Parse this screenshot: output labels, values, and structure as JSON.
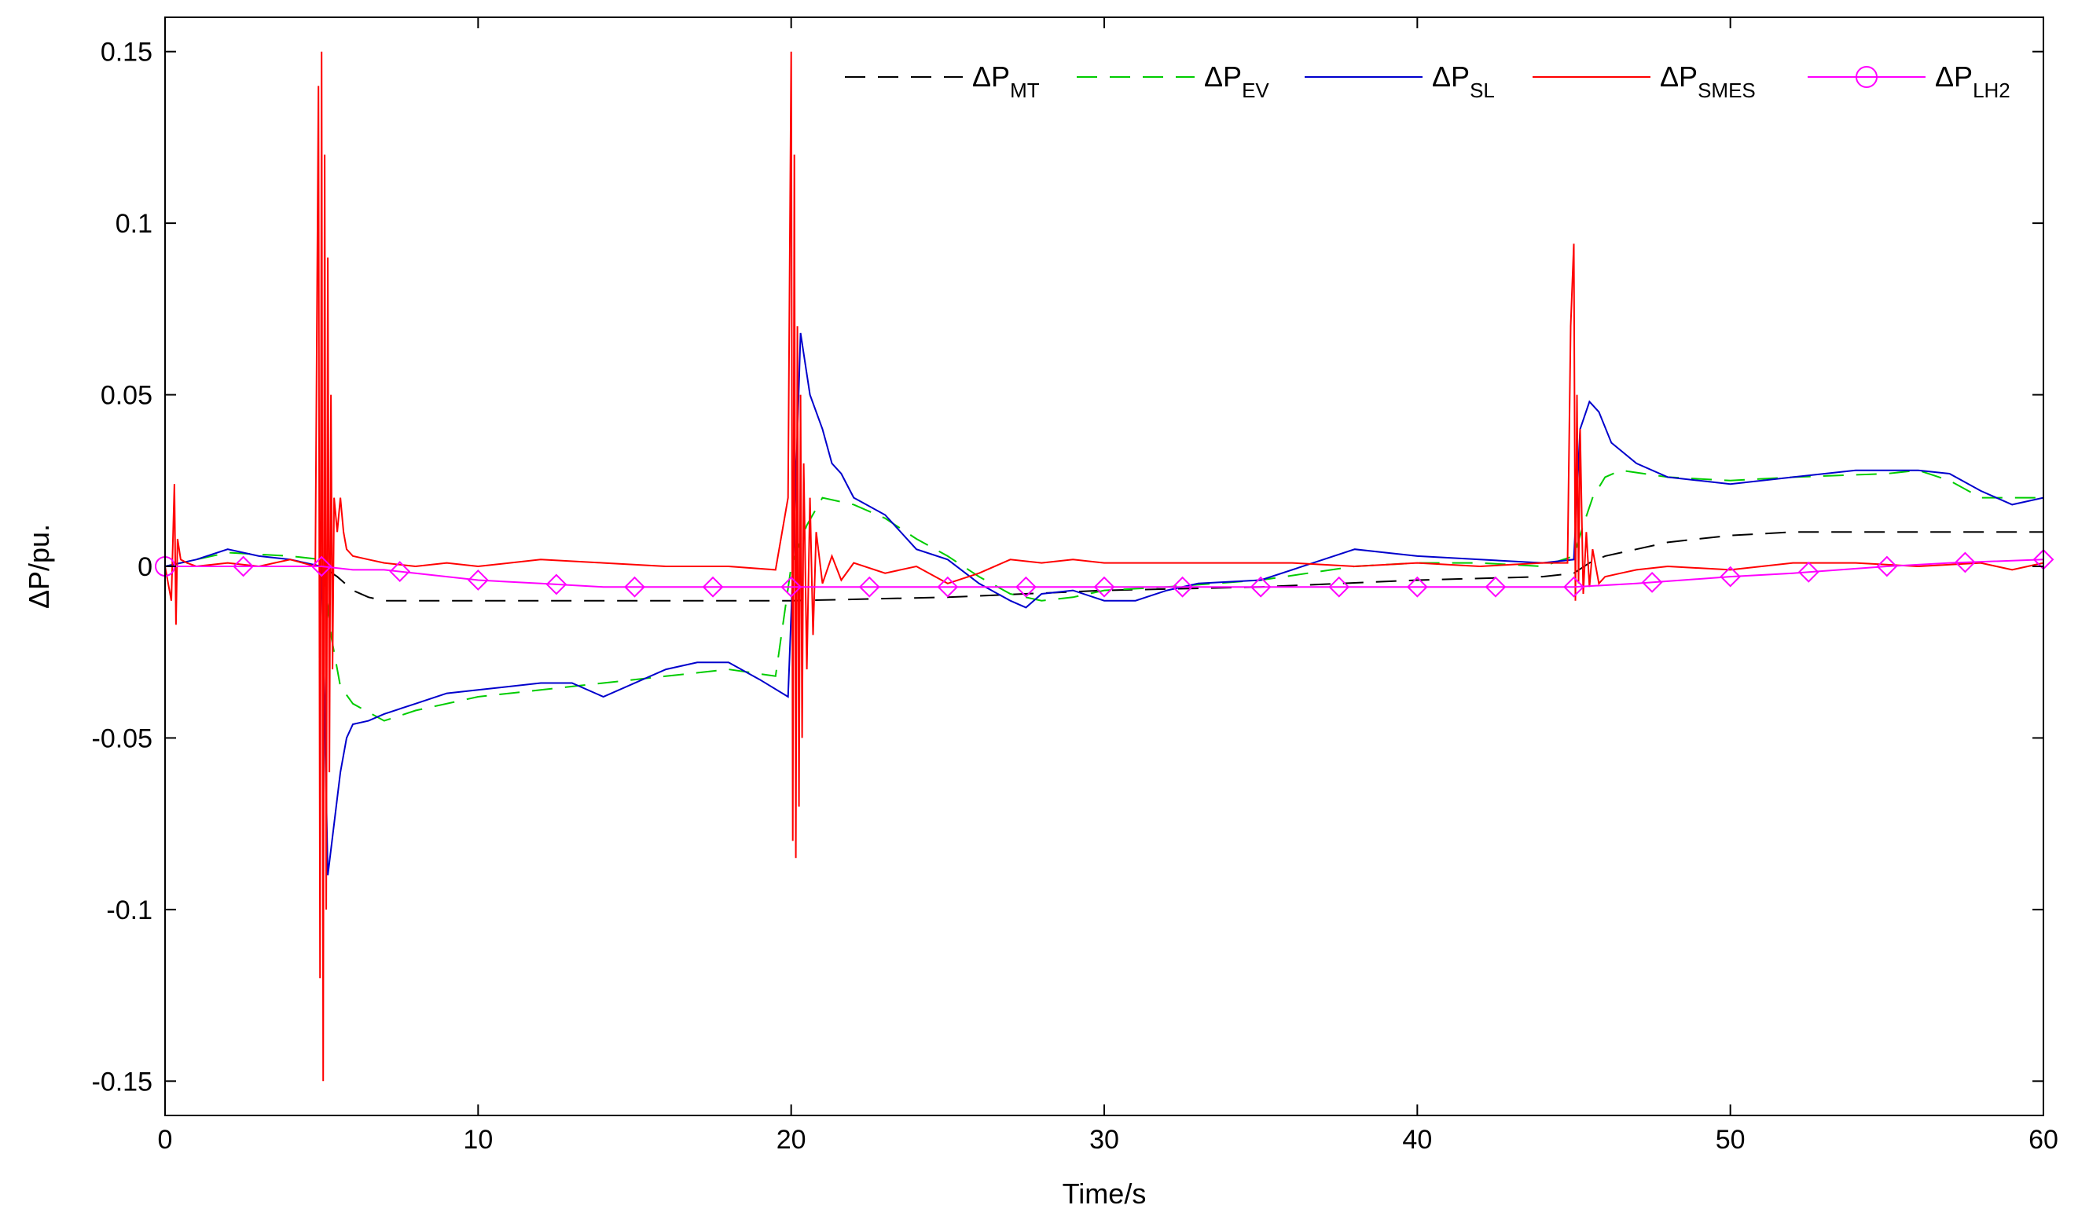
{
  "chart_data": {
    "type": "line",
    "title": "",
    "xlabel": "Time/s",
    "ylabel": "ΔP/pu.",
    "xlim": [
      0,
      60
    ],
    "ylim": [
      -0.16,
      0.16
    ],
    "xticks": [
      0,
      10,
      20,
      30,
      40,
      50,
      60
    ],
    "xtick_labels": [
      "0",
      "10",
      "20",
      "30",
      "40",
      "50",
      "60"
    ],
    "yticks": [
      -0.15,
      -0.1,
      -0.05,
      0,
      0.05,
      0.1,
      0.15
    ],
    "ytick_labels": [
      "-0.15",
      "-0.1",
      "-0.05",
      "0",
      "0.05",
      "0.1",
      "0.15"
    ],
    "grid": false,
    "legend_position": "top-right",
    "series": [
      {
        "name": "ΔP",
        "subscript": "MT",
        "color": "#000000",
        "style": "dashed",
        "x": [
          0,
          5,
          5.5,
          6,
          6.5,
          7,
          20,
          25,
          30,
          35,
          40,
          44,
          45,
          45.5,
          46,
          47,
          48,
          49,
          50,
          52,
          55,
          58,
          60
        ],
        "y": [
          0,
          0,
          -0.003,
          -0.007,
          -0.009,
          -0.01,
          -0.01,
          -0.009,
          -0.007,
          -0.006,
          -0.004,
          -0.003,
          -0.002,
          0.001,
          0.003,
          0.005,
          0.007,
          0.008,
          0.009,
          0.01,
          0.01,
          0.01,
          0.01
        ]
      },
      {
        "name": "ΔP",
        "subscript": "EV",
        "color": "#00cc00",
        "style": "dashed",
        "x": [
          0,
          1,
          2,
          4,
          5,
          5.3,
          5.6,
          6,
          7,
          8,
          10,
          12,
          14,
          16,
          18,
          19.5,
          20,
          20.5,
          21,
          22,
          23,
          24,
          25,
          26,
          27,
          28,
          29,
          30,
          32,
          35,
          38,
          40,
          42,
          44,
          45,
          45.3,
          45.6,
          46,
          46.5,
          48,
          50,
          52,
          55,
          56,
          57,
          58,
          59,
          60
        ],
        "y": [
          0,
          0.002,
          0.004,
          0.003,
          0.002,
          -0.02,
          -0.035,
          -0.04,
          -0.045,
          -0.042,
          -0.038,
          -0.036,
          -0.034,
          -0.032,
          -0.03,
          -0.032,
          0,
          0.012,
          0.02,
          0.018,
          0.014,
          0.008,
          0.003,
          -0.003,
          -0.008,
          -0.01,
          -0.009,
          -0.007,
          -0.006,
          -0.004,
          0,
          0.001,
          0.001,
          0,
          0.003,
          0.012,
          0.02,
          0.026,
          0.028,
          0.026,
          0.025,
          0.026,
          0.027,
          0.028,
          0.025,
          0.02,
          0.02,
          0.02
        ]
      },
      {
        "name": "ΔP",
        "subscript": "SL",
        "color": "#0000cc",
        "style": "solid",
        "x": [
          0,
          1,
          2,
          3,
          4,
          5,
          5.2,
          5.4,
          5.6,
          5.8,
          6,
          6.5,
          7,
          8,
          9,
          10,
          12,
          13,
          14,
          16,
          17,
          18,
          19,
          19.9,
          20.1,
          20.3,
          20.6,
          21,
          21.3,
          21.6,
          22,
          23,
          24,
          25,
          26,
          27,
          27.5,
          28,
          29,
          30,
          31,
          32,
          33,
          35,
          37,
          38,
          40,
          42,
          44,
          45,
          45.2,
          45.5,
          45.8,
          46.2,
          47,
          48,
          49,
          50,
          52,
          54,
          56,
          57,
          58,
          59,
          60
        ],
        "y": [
          0,
          0.002,
          0.005,
          0.003,
          0.002,
          0,
          -0.09,
          -0.075,
          -0.06,
          -0.05,
          -0.046,
          -0.045,
          -0.043,
          -0.04,
          -0.037,
          -0.036,
          -0.034,
          -0.034,
          -0.038,
          -0.03,
          -0.028,
          -0.028,
          -0.033,
          -0.038,
          0.01,
          0.068,
          0.05,
          0.04,
          0.03,
          0.027,
          0.02,
          0.015,
          0.005,
          0.002,
          -0.005,
          -0.01,
          -0.012,
          -0.008,
          -0.007,
          -0.01,
          -0.01,
          -0.007,
          -0.005,
          -0.004,
          0.002,
          0.005,
          0.003,
          0.002,
          0.001,
          0.002,
          0.04,
          0.048,
          0.045,
          0.036,
          0.03,
          0.026,
          0.025,
          0.024,
          0.026,
          0.028,
          0.028,
          0.027,
          0.022,
          0.018,
          0.02
        ]
      },
      {
        "name": "ΔP",
        "subscript": "SMES",
        "color": "#ff0000",
        "style": "solid",
        "x": [
          0,
          0.2,
          0.3,
          0.35,
          0.4,
          0.5,
          0.7,
          1,
          2,
          3,
          4,
          4.8,
          4.9,
          4.95,
          5.0,
          5.05,
          5.1,
          5.15,
          5.2,
          5.25,
          5.3,
          5.35,
          5.4,
          5.5,
          5.6,
          5.7,
          5.8,
          6,
          6.5,
          7,
          8,
          9,
          10,
          12,
          14,
          16,
          18,
          19.5,
          19.9,
          20.0,
          20.05,
          20.1,
          20.15,
          20.2,
          20.25,
          20.3,
          20.35,
          20.4,
          20.5,
          20.6,
          20.7,
          20.8,
          21,
          21.3,
          21.6,
          22,
          23,
          24,
          25,
          26,
          27,
          28,
          29,
          30,
          32,
          34,
          36,
          38,
          40,
          42,
          44,
          44.8,
          44.9,
          45.0,
          45.05,
          45.1,
          45.15,
          45.2,
          45.3,
          45.4,
          45.5,
          45.6,
          45.8,
          46,
          46.5,
          47,
          48,
          50,
          52,
          54,
          56,
          58,
          59,
          60
        ],
        "y": [
          0,
          -0.01,
          0.024,
          -0.017,
          0.008,
          0.002,
          0.001,
          0,
          0.001,
          0,
          0.002,
          0,
          0.14,
          -0.12,
          0.15,
          -0.15,
          0.12,
          -0.1,
          0.09,
          -0.06,
          0.05,
          -0.03,
          0.02,
          0.01,
          0.02,
          0.01,
          0.005,
          0.003,
          0.002,
          0.001,
          0,
          0.001,
          0,
          0.002,
          0.001,
          0,
          0,
          -0.001,
          0.02,
          0.15,
          -0.08,
          0.12,
          -0.085,
          0.07,
          -0.07,
          0.05,
          -0.05,
          0.03,
          -0.03,
          0.02,
          -0.02,
          0.01,
          -0.005,
          0.003,
          -0.004,
          0.001,
          -0.002,
          0,
          -0.005,
          -0.002,
          0.002,
          0.001,
          0.002,
          0.001,
          0.001,
          0.001,
          0.001,
          0,
          0.001,
          0,
          0.001,
          0.001,
          0.07,
          0.094,
          -0.01,
          0.05,
          -0.005,
          0.04,
          -0.008,
          0.01,
          -0.006,
          0.005,
          -0.005,
          -0.003,
          -0.002,
          -0.001,
          0,
          -0.001,
          0.001,
          0.001,
          0,
          0.001,
          -0.001,
          0.001
        ]
      },
      {
        "name": "ΔP",
        "subscript": "LH2",
        "color": "#ff00ff",
        "style": "solid-marker",
        "x": [
          0,
          1,
          2,
          3,
          4,
          5,
          6,
          7,
          8,
          9,
          10,
          12,
          14,
          16,
          18,
          20,
          22,
          25,
          30,
          35,
          40,
          45,
          47,
          50,
          52,
          55,
          57,
          60
        ],
        "y": [
          0,
          0,
          0,
          0,
          0,
          0,
          -0.001,
          -0.001,
          -0.002,
          -0.003,
          -0.004,
          -0.005,
          -0.006,
          -0.006,
          -0.006,
          -0.006,
          -0.006,
          -0.006,
          -0.006,
          -0.006,
          -0.006,
          -0.006,
          -0.005,
          -0.003,
          -0.002,
          0,
          0.001,
          0.002
        ]
      }
    ]
  }
}
